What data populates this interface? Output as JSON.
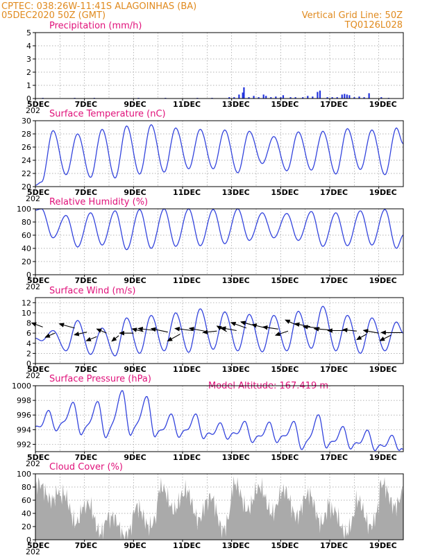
{
  "header": {
    "line1_left": "CPTEC:   038:26W-11:41S   ALAGOINHAS (BA)",
    "line2_left": "05DEC2020 50Z (GMT)",
    "line1_right": "Vertical Grid Line: 50Z",
    "line2_right": "TQ0126L028"
  },
  "model_altitude": "Model Altitude: 167.419 m",
  "x_axis": {
    "labels": [
      "5DEC",
      "7DEC",
      "9DEC",
      "11DEC",
      "13DEC",
      "15DEC",
      "17DEC",
      "19DEC"
    ],
    "label_days": [
      0,
      2,
      4,
      6,
      8,
      10,
      12,
      14
    ],
    "xlim_days": [
      0,
      15
    ],
    "sublabel": "202"
  },
  "colors": {
    "line": "#3344dd",
    "bar": "#2233dd",
    "cloud": "#aaaaaa",
    "arrow": "#000000",
    "title": "#e0117a",
    "header": "#e08a1e"
  },
  "chart_data": [
    {
      "type": "bar",
      "title": "Precipitation (mm/h)",
      "ylim": [
        0,
        5
      ],
      "yticks": [
        0,
        1,
        2,
        3,
        4,
        5
      ],
      "grid": true,
      "bars": [
        [
          0.3,
          0.05
        ],
        [
          1.6,
          0.05
        ],
        [
          2.4,
          0.05
        ],
        [
          4.2,
          0.05
        ],
        [
          5.3,
          0.05
        ],
        [
          6.6,
          0.05
        ],
        [
          7.2,
          0.05
        ],
        [
          7.9,
          0.1
        ],
        [
          8.1,
          0.1
        ],
        [
          8.3,
          0.3
        ],
        [
          8.45,
          0.45
        ],
        [
          8.5,
          0.85
        ],
        [
          8.7,
          0.1
        ],
        [
          8.9,
          0.2
        ],
        [
          9.1,
          0.1
        ],
        [
          9.3,
          0.3
        ],
        [
          9.4,
          0.2
        ],
        [
          9.6,
          0.1
        ],
        [
          9.8,
          0.15
        ],
        [
          10.0,
          0.1
        ],
        [
          10.1,
          0.25
        ],
        [
          10.4,
          0.1
        ],
        [
          10.6,
          0.1
        ],
        [
          10.9,
          0.1
        ],
        [
          11.1,
          0.2
        ],
        [
          11.3,
          0.15
        ],
        [
          11.5,
          0.5
        ],
        [
          11.6,
          0.6
        ],
        [
          11.9,
          0.1
        ],
        [
          12.1,
          0.1
        ],
        [
          12.3,
          0.1
        ],
        [
          12.5,
          0.3
        ],
        [
          12.6,
          0.35
        ],
        [
          12.7,
          0.3
        ],
        [
          12.8,
          0.25
        ],
        [
          13.0,
          0.1
        ],
        [
          13.2,
          0.15
        ],
        [
          13.4,
          0.1
        ],
        [
          13.6,
          0.4
        ],
        [
          14.1,
          0.1
        ],
        [
          14.4,
          0.05
        ]
      ]
    },
    {
      "type": "line",
      "title": "Surface Temperature (nC)",
      "ylim": [
        20,
        30
      ],
      "yticks": [
        20,
        22,
        24,
        26,
        28,
        30
      ],
      "grid": true,
      "daily_max": [
        28.5,
        28.0,
        28.7,
        29.2,
        29.4,
        28.9,
        28.7,
        28.6,
        28.4,
        27.6,
        28.3,
        28.4,
        28.8,
        28.6,
        28.9,
        30.0
      ],
      "daily_min": [
        20.7,
        21.8,
        21.4,
        21.3,
        21.9,
        22.2,
        22.7,
        22.7,
        22.1,
        23.5,
        22.4,
        22.5,
        21.9,
        22.6,
        21.8,
        22.3
      ],
      "start": 20.2,
      "end": 26.5
    },
    {
      "type": "line",
      "title": "Relative Humidity (%)",
      "ylim": [
        0,
        100
      ],
      "yticks": [
        0,
        20,
        40,
        60,
        80,
        100
      ],
      "grid": true,
      "daily_max": [
        100,
        90,
        94,
        97,
        99,
        100,
        100,
        99,
        100,
        94,
        93,
        96,
        94,
        97,
        99,
        100
      ],
      "daily_min": [
        56,
        42,
        45,
        38,
        40,
        43,
        44,
        47,
        52,
        56,
        52,
        43,
        44,
        45,
        40,
        40
      ],
      "start": 98,
      "end": 60
    },
    {
      "type": "line",
      "title": "Surface Wind (m/s)",
      "ylim": [
        0,
        13
      ],
      "yticks": [
        0,
        2,
        4,
        6,
        8,
        10,
        12
      ],
      "grid": true,
      "daily_max": [
        6.5,
        8.5,
        7.0,
        9.0,
        9.5,
        10.0,
        10.8,
        10.2,
        9.7,
        9.5,
        10.3,
        11.3,
        9.5,
        9.0,
        8.2,
        6.0
      ],
      "daily_min": [
        4.5,
        2.5,
        1.8,
        1.5,
        2.0,
        2.5,
        2.2,
        2.8,
        2.5,
        2.3,
        2.5,
        3.0,
        2.5,
        2.0,
        2.5,
        4.0
      ],
      "start": 5.0,
      "end": 6.0,
      "wind_vectors": [
        [
          0.3,
          7.2,
          -16,
          -6
        ],
        [
          0.8,
          6.0,
          -14,
          6
        ],
        [
          1.6,
          7.0,
          -22,
          -6
        ],
        [
          2.1,
          6.2,
          -18,
          4
        ],
        [
          2.5,
          5.3,
          -15,
          6
        ],
        [
          2.9,
          6.0,
          -14,
          -6
        ],
        [
          3.4,
          5.5,
          -10,
          8
        ],
        [
          4.0,
          6.0,
          -20,
          0
        ],
        [
          4.4,
          6.3,
          -16,
          -4
        ],
        [
          4.9,
          6.5,
          -25,
          -3
        ],
        [
          5.4,
          6.2,
          -24,
          -5
        ],
        [
          5.9,
          5.8,
          -18,
          10
        ],
        [
          6.4,
          6.5,
          -25,
          -3
        ],
        [
          6.9,
          6.4,
          -22,
          -4
        ],
        [
          7.4,
          6.4,
          -20,
          2
        ],
        [
          7.8,
          6.3,
          -14,
          -8
        ],
        [
          8.2,
          6.5,
          -22,
          -4
        ],
        [
          8.6,
          7.0,
          -22,
          -8
        ],
        [
          9.0,
          7.4,
          -22,
          -6
        ],
        [
          9.4,
          7.0,
          -20,
          -5
        ],
        [
          9.9,
          6.8,
          -22,
          -3
        ],
        [
          10.3,
          6.4,
          -18,
          6
        ],
        [
          10.7,
          7.5,
          -18,
          -8
        ],
        [
          11.2,
          7.3,
          -22,
          -4
        ],
        [
          11.6,
          7.0,
          -24,
          -2
        ],
        [
          12.1,
          6.6,
          -26,
          -2
        ],
        [
          12.6,
          6.5,
          -24,
          0
        ],
        [
          13.1,
          6.4,
          -20,
          -2
        ],
        [
          13.5,
          5.8,
          -14,
          8
        ],
        [
          14.0,
          6.0,
          -22,
          -4
        ],
        [
          14.5,
          5.6,
          -16,
          8
        ],
        [
          14.95,
          6.1,
          -30,
          0
        ]
      ]
    },
    {
      "type": "line",
      "title": "Surface Pressure (hPa)",
      "ylim": [
        991,
        1000
      ],
      "yticks": [
        992,
        994,
        996,
        998,
        1000
      ],
      "grid": true,
      "daily_max": [
        996.2,
        997.3,
        997.4,
        998.9,
        998.1,
        995.7,
        995.7,
        994.5,
        994.7,
        994.6,
        994.7,
        995.6,
        994.0,
        993.5,
        992.8,
        992.0
      ],
      "daily_min": [
        994.0,
        993.4,
        993.0,
        993.3,
        993.1,
        993.1,
        992.9,
        992.9,
        992.4,
        992.4,
        991.4,
        991.6,
        991.5,
        991.3,
        991.4,
        990.9
      ],
      "start": 994.0,
      "end": 990.9
    },
    {
      "type": "area",
      "title": "Cloud Cover (%)",
      "ylim": [
        0,
        100
      ],
      "yticks": [
        0,
        20,
        40,
        60,
        80,
        100
      ],
      "grid": true,
      "daily_cloud": [
        [
          85,
          60
        ],
        [
          70,
          25
        ],
        [
          55,
          10
        ],
        [
          35,
          5
        ],
        [
          50,
          20
        ],
        [
          80,
          45
        ],
        [
          75,
          30
        ],
        [
          65,
          15
        ],
        [
          85,
          45
        ],
        [
          80,
          40
        ],
        [
          75,
          35
        ],
        [
          70,
          25
        ],
        [
          45,
          10
        ],
        [
          60,
          20
        ],
        [
          85,
          50
        ],
        [
          90,
          60
        ]
      ]
    }
  ]
}
